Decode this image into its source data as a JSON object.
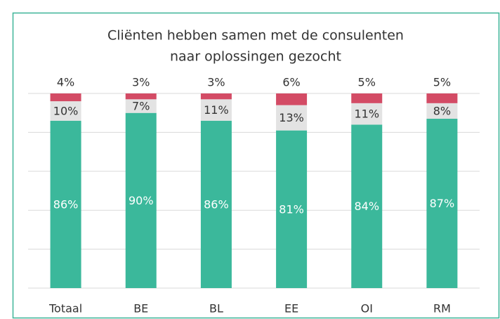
{
  "chart_data": {
    "type": "stacked_bar",
    "title": [
      "Cliënten hebben samen met de consulenten",
      "naar oplossingen gezocht"
    ],
    "categories": [
      "Totaal",
      "BE",
      "BL",
      "EE",
      "OI",
      "RM"
    ],
    "series": [
      {
        "color": "#3bb89b",
        "values": [
          86,
          90,
          86,
          81,
          84,
          87
        ],
        "value_labels": [
          "86%",
          "90%",
          "86%",
          "81%",
          "84%",
          "87%"
        ]
      },
      {
        "color": "#e3e3e3",
        "values": [
          10,
          7,
          11,
          13,
          11,
          8
        ],
        "value_labels": [
          "10%",
          "7%",
          "11%",
          "13%",
          "11%",
          "8%"
        ]
      },
      {
        "color": "#d34b65",
        "values": [
          4,
          3,
          3,
          6,
          5,
          5
        ],
        "value_labels": [
          "4%",
          "3%",
          "3%",
          "6%",
          "5%",
          "5%"
        ]
      }
    ],
    "ylim": [
      0,
      100
    ],
    "yticks": [
      0,
      20,
      40,
      60,
      80,
      100
    ],
    "grid": true,
    "border_color": "#3db598"
  }
}
